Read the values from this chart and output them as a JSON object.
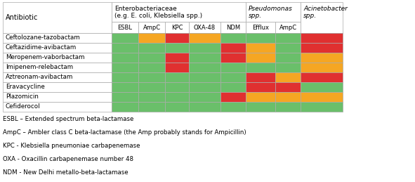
{
  "antibiotics": [
    "Ceftolozane-tazobactam",
    "Ceftazidime-avibactam",
    "Meropenem-vaborbactam",
    "Imipenem-relebactam",
    "Aztreonam-avibactam",
    "Eravacycline",
    "Plazomicin",
    "Cefiderocol"
  ],
  "col_labels_row2": [
    "ESBL",
    "AmpC",
    "KPC",
    "OXA-48",
    "NDM",
    "Efflux",
    "AmpC"
  ],
  "colors": {
    "green": "#6abf6a",
    "red": "#e03030",
    "orange": "#f5a623",
    "white": "#ffffff",
    "border": "#aaaaaa"
  },
  "cell_colors": [
    [
      "green",
      "orange",
      "red",
      "orange",
      "green",
      "green",
      "green",
      "red"
    ],
    [
      "green",
      "green",
      "green",
      "green",
      "red",
      "orange",
      "green",
      "red"
    ],
    [
      "green",
      "green",
      "red",
      "green",
      "red",
      "orange",
      "green",
      "orange"
    ],
    [
      "green",
      "green",
      "red",
      "green",
      "green",
      "green",
      "green",
      "orange"
    ],
    [
      "green",
      "green",
      "green",
      "green",
      "green",
      "red",
      "orange",
      "red"
    ],
    [
      "green",
      "green",
      "green",
      "green",
      "green",
      "red",
      "red",
      "green"
    ],
    [
      "green",
      "green",
      "green",
      "green",
      "red",
      "orange",
      "orange",
      "orange"
    ],
    [
      "green",
      "green",
      "green",
      "green",
      "green",
      "green",
      "green",
      "green"
    ]
  ],
  "footnotes": [
    "ESBL – Extended spectrum beta-lactamase",
    "AmpC – Ambler class C beta-lactamase (the Amp probably stands for Ampicillin)",
    "KPC - Klebsiella pneumoniae carbapenemase",
    "OXA - Oxacillin carbapenemase number 48",
    "NDM - New Delhi metallo-beta-lactamase"
  ]
}
